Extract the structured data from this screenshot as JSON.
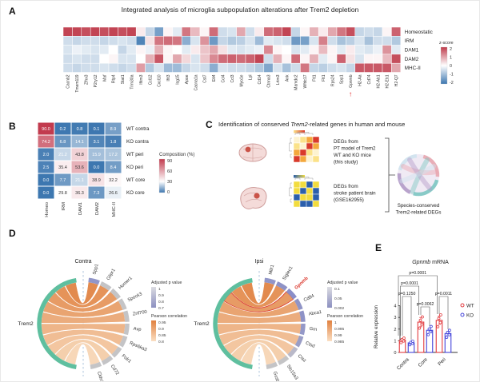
{
  "panelA": {
    "label": "A",
    "title": "Integrated analysis of microglia subpopulation alterations after Trem2 depletion",
    "genes": [
      "Cacnb2",
      "Tmem119",
      "Zfhx3",
      "P2ry12",
      "Maf",
      "Rtp4",
      "Stat1",
      "Trim30a",
      "Ifitm3",
      "Ccl12",
      "Cxcl10",
      "Ifit3",
      "Isg15",
      "Apoe",
      "Cacna1a",
      "Cst7",
      "Etl4",
      "Ccl4",
      "Ccl3",
      "Myo1e",
      "Lpl",
      "Cd14",
      "Ctnna3",
      "Lrtm3",
      "Ank",
      "Mamdc2",
      "Wfdc17",
      "Ftl1",
      "Flt1",
      "Rps24",
      "Spp1",
      "Gpnmb",
      "H2-Aa",
      "Cd74",
      "H2-Ab1",
      "H2-Eb1",
      "H2-Q7"
    ],
    "rows": [
      "Homeostatic",
      "IRM",
      "DAM1",
      "DAM2",
      "MHC-II"
    ],
    "matrix": [
      [
        1.9,
        1.9,
        1.8,
        1.9,
        1.8,
        1.9,
        1.8,
        1.9,
        0.2,
        -0.6,
        -1.4,
        0.1,
        -0.3,
        1.4,
        0.7,
        0.1,
        1.5,
        -0.5,
        -0.4,
        0.9,
        -0.5,
        0.2,
        1.5,
        1.6,
        1.9,
        -0.6,
        0.1,
        0.8,
        0.2,
        0.9,
        1.4,
        1.8,
        -0.6,
        -0.5,
        -0.6,
        0.1,
        1.6
      ],
      [
        -0.5,
        -0.6,
        -0.5,
        -0.5,
        -0.6,
        -0.5,
        -0.4,
        -0.5,
        -1.8,
        0.3,
        1.4,
        1.5,
        1.4,
        -1.2,
        -0.4,
        1.1,
        -1.5,
        -0.6,
        -0.8,
        -0.7,
        -0.4,
        -1.0,
        -0.3,
        -0.4,
        -0.5,
        -1.5,
        -1.4,
        -0.4,
        1.3,
        -0.5,
        -0.9,
        -0.7,
        -0.4,
        -0.9,
        -0.5,
        -0.5,
        -0.8
      ],
      [
        -0.4,
        -0.2,
        -0.3,
        -0.4,
        -0.3,
        0.0,
        -0.6,
        -0.3,
        0.1,
        -0.2,
        0.8,
        0.1,
        0.0,
        -0.3,
        0.2,
        0.6,
        0.9,
        0.3,
        -0.3,
        -0.4,
        -0.3,
        -0.2,
        1.2,
        0.1,
        0.0,
        -0.4,
        -0.3,
        0.1,
        0.7,
        0.1,
        -0.3,
        0.2,
        -0.3,
        -0.4,
        -0.2,
        1.1,
        -0.3
      ],
      [
        -0.5,
        -0.4,
        -0.5,
        -0.5,
        0.0,
        0.1,
        -0.4,
        -0.4,
        0.0,
        0.8,
        1.7,
        0.1,
        0.9,
        0.4,
        -0.4,
        0.6,
        1.2,
        1.5,
        1.6,
        1.5,
        1.6,
        1.9,
        -0.5,
        0.8,
        0.1,
        1.5,
        0.1,
        0.8,
        -0.3,
        0.1,
        1.6,
        0.3,
        -0.4,
        0.1,
        0.1,
        0.7,
        1.8
      ],
      [
        -0.5,
        -0.6,
        -0.5,
        -0.5,
        -0.4,
        -0.5,
        -0.6,
        -0.5,
        1.0,
        -0.8,
        -0.4,
        -1.0,
        -1.0,
        -0.6,
        -0.4,
        -0.5,
        -1.2,
        -0.4,
        -0.5,
        -0.5,
        -0.6,
        -0.8,
        -1.3,
        -0.4,
        -0.9,
        -0.5,
        1.4,
        -0.6,
        -0.7,
        -0.5,
        -0.4,
        -0.6,
        1.7,
        1.7,
        1.7,
        1.7,
        0.9
      ]
    ],
    "colorbar": {
      "title": "z-score",
      "ticks": [
        "2",
        "1",
        "0",
        "-1",
        "-2"
      ]
    },
    "arrow_gene": "Gpnmb",
    "colors": {
      "red": "#bf3b4b",
      "blue": "#3d77b0",
      "arrow": "#e02427"
    }
  },
  "panelB": {
    "label": "B",
    "rows": [
      "WT contra",
      "KO contra",
      "WT peri",
      "KO peri",
      "WT core",
      "KO core"
    ],
    "cols": [
      "Homeo",
      "IRM",
      "DAM1",
      "DAM2",
      "MHC-II"
    ],
    "values": [
      [
        90.0,
        0.2,
        0.8,
        0.1,
        8.9
      ],
      [
        74.2,
        6.8,
        14.1,
        3.1,
        1.8
      ],
      [
        2.0,
        21.2,
        43.8,
        15.9,
        17.2
      ],
      [
        2.5,
        35.4,
        53.6,
        0.0,
        8.4
      ],
      [
        0.0,
        7.7,
        21.1,
        38.9,
        32.2
      ],
      [
        0.0,
        29.8,
        36.3,
        7.3,
        26.6
      ]
    ],
    "legend": {
      "title": "Composition (%)",
      "ticks": [
        "90",
        "60",
        "30",
        "0"
      ]
    },
    "colors": {
      "red": "#c23b4e",
      "blue": "#3d77b0"
    }
  },
  "panelC": {
    "label": "C",
    "title_prefix": "Identification of conserved ",
    "title_italic": "Trem2",
    "title_suffix": "-related genes in human and mouse",
    "item1_lines": [
      "DEGs from",
      "PT model of Trem2",
      "WT and KO mice",
      "(this study)"
    ],
    "item2_lines": [
      "DEGs from",
      "stroke patient brain",
      "(GSE162955)"
    ],
    "caption_lines": [
      "Species-conserved",
      "Trem2-related DEGs"
    ],
    "art": {
      "heat1": [
        "#fdf3d0",
        "#fbe289",
        "#f4a83d",
        "#d93a2b"
      ],
      "heat2": [
        "#f2dc3e",
        "#2b5fac"
      ],
      "brain_fill": "#f4dbd9",
      "brain_stroke": "#cf9e9c",
      "lesion": "#c23b2e",
      "ball": [
        "#e8a7b0",
        "#7cc7c2",
        "#b39bc8",
        "#cfe3ee"
      ]
    }
  },
  "panelD": {
    "label": "D",
    "colors": {
      "hub": "#5fbf9f",
      "ribbon_dark": "#e0813f",
      "ribbon_light": "#f7d4b2",
      "highlight": "#d93025",
      "dash": "#9bb8d4"
    },
    "contra": {
      "title": "Contra",
      "hub": "Trem2",
      "highlight": "",
      "genes": [
        "Spp1",
        "Glipr1",
        "Homer1",
        "Spock3",
        "Znf700",
        "Avp",
        "Rps6ka3",
        "Folr1",
        "Cd72",
        "Cldn2"
      ],
      "arc_colors": [
        "#9296c8",
        "#c4c4c6",
        "#c4c4c6",
        "#c4c4c6",
        "#c4c4c6",
        "#c4c4c6",
        "#c4c4c6",
        "#c4c4c6",
        "#c4c4c6",
        "#c4c4c6"
      ],
      "padj": {
        "title": "Adjusted p value",
        "ticks": [
          "1",
          "0.9",
          "0.8",
          "0.7"
        ],
        "top": "#dcdce2",
        "bottom": "#8b8fc0"
      },
      "pearson": {
        "title": "Pearson correlation",
        "ticks": [
          "0.95",
          "0.9",
          "0.85",
          "0.8"
        ],
        "top": "#e0813f",
        "bottom": "#fadfc3"
      }
    },
    "ipsi": {
      "title": "Ipsi",
      "hub": "Trem2",
      "highlight": "Gpnmb",
      "genes": [
        "Milr1",
        "Siglec1",
        "Gpnmb",
        "Cd84",
        "Abca1",
        "Grn",
        "Ctsd",
        "Ctsz",
        "Slc15a3",
        "Gusb"
      ],
      "arc_colors": [
        "#9296c8",
        "#8e92c6",
        "#8a8ec8",
        "#9094c6",
        "#8e92c6",
        "#9498c8",
        "#9a9ec6",
        "#b9b9c9",
        "#c4c4c6",
        "#c4c4c6"
      ],
      "padj": {
        "title": "Adjusted p value",
        "ticks": [
          "0.1",
          "0.05",
          "0.002"
        ],
        "top": "#dcdce2",
        "bottom": "#8b8fc0"
      },
      "pearson": {
        "title": "Pearson correlation",
        "ticks": [
          "1",
          "0.995",
          "0.99",
          "0.985"
        ],
        "top": "#e0813f",
        "bottom": "#fadfc3"
      }
    }
  },
  "panelE": {
    "label": "E",
    "title_italic": "Gpnmb",
    "title_rest": " mRNA",
    "ylabel": "Relative expression",
    "yticks": [
      "0",
      "1",
      "2",
      "3",
      "4"
    ],
    "categories": [
      "Contra",
      "Core",
      "Peri"
    ],
    "series": [
      {
        "name": "WT",
        "color": "#e23b3f",
        "values": [
          1.05,
          2.6,
          2.75
        ],
        "errors": [
          0.15,
          0.4,
          0.35
        ]
      },
      {
        "name": "KO",
        "color": "#4343d9",
        "values": [
          0.82,
          1.9,
          1.62
        ],
        "errors": [
          0.1,
          0.15,
          0.12
        ]
      }
    ],
    "comparisons": [
      {
        "text": "p=0.0001",
        "from": "contra-wt",
        "to": "peri-wt",
        "y": 51,
        "off1": -5,
        "off2": -2.5,
        "stop1": 126,
        "stop2": 99
      },
      {
        "text": "p=0.0001",
        "from": "contra-wt",
        "to": "core-wt",
        "y": 64,
        "off1": -2.5,
        "off2": -2.5,
        "stop1": 126,
        "stop2": 100
      },
      {
        "text": "p=0.1250",
        "from": "contra-wt",
        "to": "contra-ko",
        "y": 77,
        "off1": 0,
        "off2": 0,
        "stop1": 126,
        "stop2": 131
      },
      {
        "text": "p=0.0011",
        "from": "peri-wt",
        "to": "peri-ko",
        "y": 77,
        "off1": 0,
        "off2": 0,
        "stop1": 99,
        "stop2": 118
      },
      {
        "text": "p=0.0062",
        "from": "core-wt",
        "to": "core-ko",
        "y": 90,
        "off1": 0,
        "off2": 0,
        "stop1": 100,
        "stop2": 114
      }
    ]
  }
}
